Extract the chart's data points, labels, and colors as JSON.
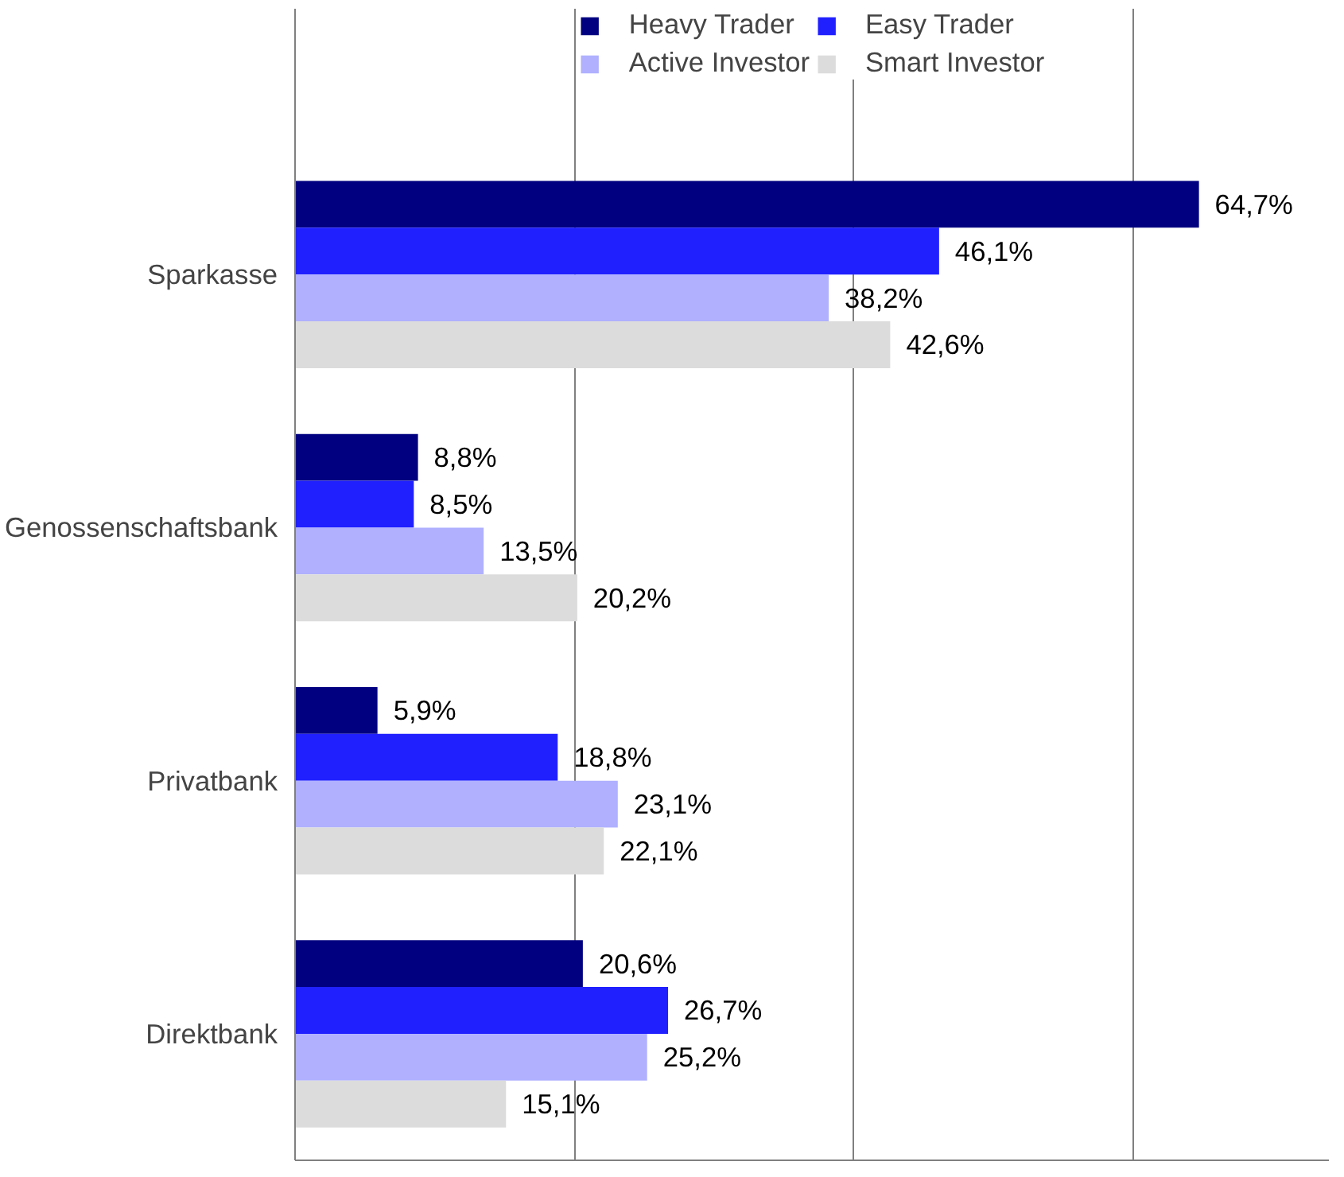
{
  "chart_data": {
    "type": "bar",
    "orientation": "horizontal",
    "categories": [
      "Sparkasse",
      "Genossenschaftsbank",
      "Privatbank",
      "Direktbank"
    ],
    "series": [
      {
        "name": "Heavy Trader",
        "color": "#000080",
        "values": [
          64.7,
          8.8,
          5.9,
          20.6
        ],
        "value_labels": [
          "64,7%",
          "8,8%",
          "5,9%",
          "20,6%"
        ]
      },
      {
        "name": "Easy Trader",
        "color": "#2020ff",
        "values": [
          46.1,
          8.5,
          18.8,
          26.7
        ],
        "value_labels": [
          "46,1%",
          "8,5%",
          "18,8%",
          "26,7%"
        ]
      },
      {
        "name": "Active Investor",
        "color": "#b0b0ff",
        "values": [
          38.2,
          13.5,
          23.1,
          25.2
        ],
        "value_labels": [
          "38,2%",
          "13,5%",
          "23,1%",
          "25,2%"
        ]
      },
      {
        "name": "Smart Investor",
        "color": "#dcdcdc",
        "values": [
          42.6,
          20.2,
          22.1,
          15.1
        ],
        "value_labels": [
          "42,6%",
          "20,2%",
          "22,1%",
          "15,1%"
        ]
      }
    ],
    "xlim": [
      0,
      74
    ],
    "xticks": [
      {
        "value": 0,
        "label": null
      },
      {
        "value": 20,
        "label": null
      },
      {
        "value": 40,
        "label": null
      },
      {
        "value": 60,
        "label": null
      }
    ],
    "grid": "x",
    "legend": "top",
    "tick_labels": "y"
  }
}
